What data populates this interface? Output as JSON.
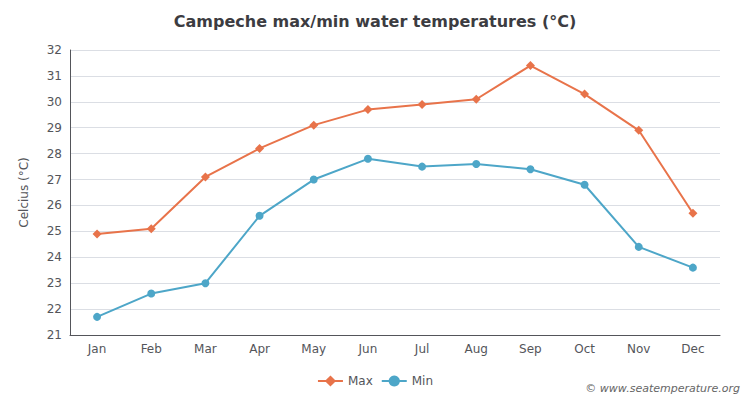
{
  "chart_data": {
    "type": "line",
    "title": "Campeche max/min water temperatures (°C)",
    "ylabel": "Celcius (°C)",
    "categories": [
      "Jan",
      "Feb",
      "Mar",
      "Apr",
      "May",
      "Jun",
      "Jul",
      "Aug",
      "Sep",
      "Oct",
      "Nov",
      "Dec"
    ],
    "series": [
      {
        "name": "Max",
        "color": "#e8734a",
        "marker": "diamond",
        "values": [
          24.9,
          25.1,
          27.1,
          28.2,
          29.1,
          29.7,
          29.9,
          30.1,
          31.4,
          30.3,
          28.9,
          25.7
        ]
      },
      {
        "name": "Min",
        "color": "#4da6c8",
        "marker": "circle",
        "values": [
          21.7,
          22.6,
          23.0,
          25.6,
          27.0,
          27.8,
          27.5,
          27.6,
          27.4,
          26.8,
          24.4,
          23.6
        ]
      }
    ],
    "ylim": [
      21,
      32
    ],
    "yticks": [
      21,
      22,
      23,
      24,
      25,
      26,
      27,
      28,
      29,
      30,
      31,
      32
    ],
    "grid": true,
    "legend": "bottom",
    "annotations": [
      "© www.seatemperature.org"
    ]
  }
}
